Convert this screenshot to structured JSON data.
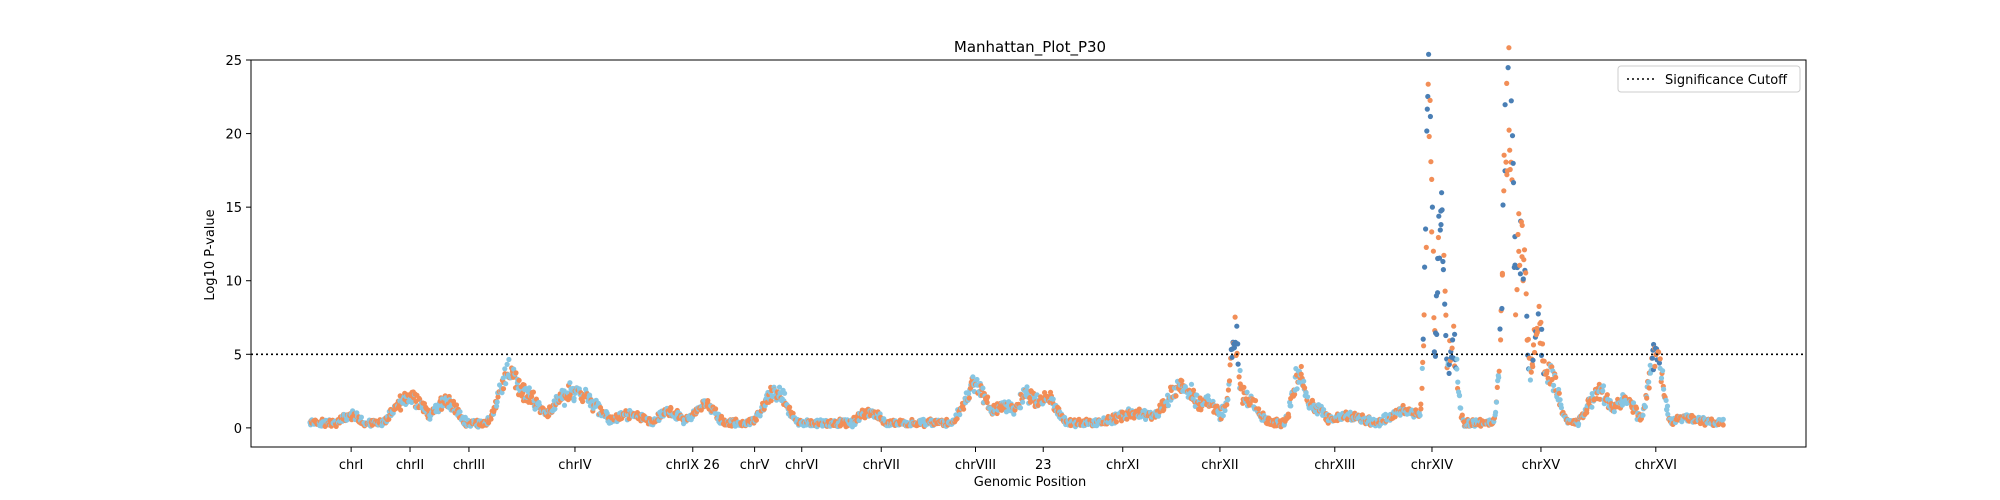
{
  "chart_data": {
    "type": "scatter",
    "title": "Manhattan_Plot_P30",
    "xlabel": "Genomic Position",
    "ylabel": "Log10 P-value",
    "ylim": [
      -1.3,
      25
    ],
    "yticks": [
      0,
      5,
      10,
      15,
      20,
      25
    ],
    "grid": false,
    "legend": {
      "placement": "top-right",
      "entries": [
        "Significance Cutoff"
      ]
    },
    "significance_cutoff": 5,
    "series_colors": [
      "#4a7fb5",
      "#f28e57",
      "#87c6e3"
    ],
    "chromosomes": [
      {
        "label": "chrI",
        "x": 0.5
      },
      {
        "label": "chrII",
        "x": 1.5
      },
      {
        "label": "chrIII",
        "x": 2.5
      },
      {
        "label": "chrIV",
        "x": 4.3
      },
      {
        "label": "chrIX 26",
        "x": 6.3
      },
      {
        "label": "chrV",
        "x": 7.35
      },
      {
        "label": "chrVI",
        "x": 8.15
      },
      {
        "label": "chrVII",
        "x": 9.5
      },
      {
        "label": "chrVIII",
        "x": 11.1
      },
      {
        "label": "23",
        "x": 12.25
      },
      {
        "label": "chrXI",
        "x": 13.6
      },
      {
        "label": "chrXII",
        "x": 15.25
      },
      {
        "label": "chrXIII",
        "x": 17.2
      },
      {
        "label": "chrXIV",
        "x": 18.85
      },
      {
        "label": "chrXV",
        "x": 20.7
      },
      {
        "label": "chrXVI",
        "x": 22.65
      }
    ],
    "xlim": [
      -1.2,
      25.2
    ],
    "data_xrange": [
      -0.2,
      23.8
    ],
    "peaks": [
      {
        "x": 0.5,
        "y": 0.9,
        "width": 0.18
      },
      {
        "x": 1.5,
        "y": 2.2,
        "width": 0.25
      },
      {
        "x": 2.1,
        "y": 1.9,
        "width": 0.2
      },
      {
        "x": 3.2,
        "y": 4.1,
        "width": 0.18
      },
      {
        "x": 3.4,
        "y": 2.5,
        "width": 0.3
      },
      {
        "x": 4.3,
        "y": 2.6,
        "width": 0.35
      },
      {
        "x": 5.2,
        "y": 0.9,
        "width": 0.3
      },
      {
        "x": 5.9,
        "y": 1.1,
        "width": 0.2
      },
      {
        "x": 6.5,
        "y": 1.6,
        "width": 0.2
      },
      {
        "x": 7.7,
        "y": 2.6,
        "width": 0.2
      },
      {
        "x": 9.3,
        "y": 1.1,
        "width": 0.2
      },
      {
        "x": 11.1,
        "y": 3.0,
        "width": 0.2
      },
      {
        "x": 11.6,
        "y": 1.6,
        "width": 0.3
      },
      {
        "x": 12.0,
        "y": 2.4,
        "width": 0.2
      },
      {
        "x": 12.3,
        "y": 2.1,
        "width": 0.2
      },
      {
        "x": 13.8,
        "y": 1.0,
        "width": 0.4
      },
      {
        "x": 14.6,
        "y": 2.8,
        "width": 0.3
      },
      {
        "x": 15.0,
        "y": 2.0,
        "width": 0.2
      },
      {
        "x": 15.5,
        "y": 6.8,
        "width": 0.08
      },
      {
        "x": 15.6,
        "y": 2.5,
        "width": 0.25
      },
      {
        "x": 16.6,
        "y": 3.8,
        "width": 0.12
      },
      {
        "x": 16.8,
        "y": 1.6,
        "width": 0.2
      },
      {
        "x": 17.4,
        "y": 0.8,
        "width": 0.4
      },
      {
        "x": 18.4,
        "y": 1.2,
        "width": 0.3
      },
      {
        "x": 18.8,
        "y": 22.2,
        "width": 0.06
      },
      {
        "x": 19.0,
        "y": 14.4,
        "width": 0.07
      },
      {
        "x": 19.2,
        "y": 6.3,
        "width": 0.08
      },
      {
        "x": 20.15,
        "y": 23.6,
        "width": 0.09
      },
      {
        "x": 20.35,
        "y": 14.0,
        "width": 0.1
      },
      {
        "x": 20.65,
        "y": 7.6,
        "width": 0.1
      },
      {
        "x": 20.85,
        "y": 3.9,
        "width": 0.15
      },
      {
        "x": 21.7,
        "y": 2.5,
        "width": 0.2
      },
      {
        "x": 22.1,
        "y": 2.0,
        "width": 0.2
      },
      {
        "x": 22.65,
        "y": 5.4,
        "width": 0.12
      },
      {
        "x": 23.2,
        "y": 0.7,
        "width": 0.3
      }
    ],
    "baseline": 0.35
  }
}
